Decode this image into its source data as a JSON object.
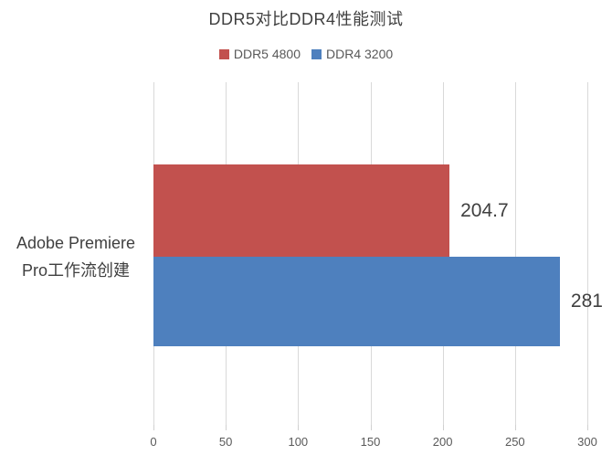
{
  "chart_data": {
    "type": "bar",
    "orientation": "horizontal",
    "title": "DDR5对比DDR4性能测试",
    "categories": [
      "Adobe Premiere Pro工作流创建"
    ],
    "category_label_lines": [
      "Adobe Premiere",
      "Pro工作流创建"
    ],
    "series": [
      {
        "name": "DDR5 4800",
        "color": "#c2514e",
        "values": [
          204.7
        ],
        "data_labels": [
          "204.7"
        ]
      },
      {
        "name": "DDR4 3200",
        "color": "#4e80be",
        "values": [
          281
        ],
        "data_labels": [
          "281"
        ]
      }
    ],
    "xlim": [
      0,
      300
    ],
    "xticks": [
      0,
      50,
      100,
      150,
      200,
      250,
      300
    ],
    "grid": true,
    "legend_position": "top-center",
    "colors": {
      "title_text": "#404040",
      "category_text": "#404040",
      "data_label_text": "#3f3f3f",
      "tick_text": "#595959",
      "legend_text": "#595959",
      "gridline": "#d9d9d9",
      "background": "#ffffff"
    }
  }
}
